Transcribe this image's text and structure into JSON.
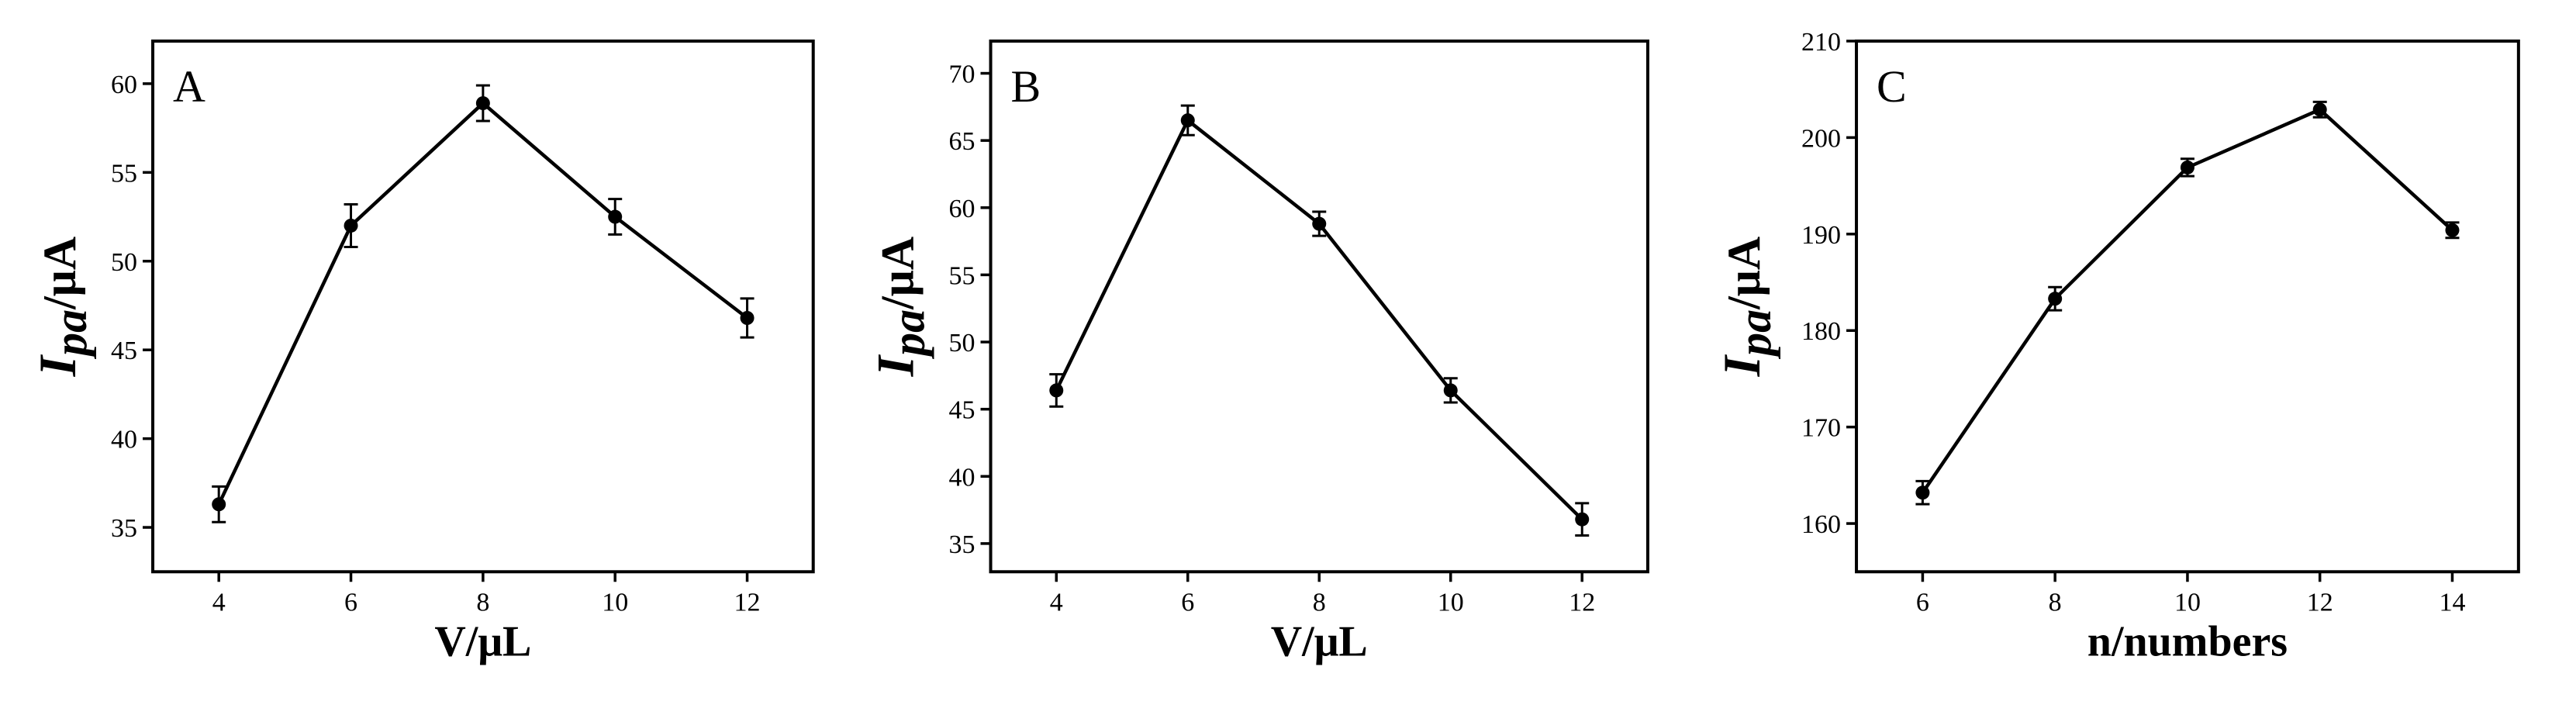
{
  "chart_data": [
    {
      "type": "line",
      "annotation": "A",
      "color": "#000000",
      "x": [
        4,
        6,
        8,
        10,
        12
      ],
      "values": [
        36.3,
        52.0,
        58.9,
        52.5,
        46.8
      ],
      "errors": [
        1.0,
        1.2,
        1.0,
        1.0,
        1.1
      ],
      "xlim": [
        3,
        13
      ],
      "ylim": [
        32.5,
        62.4
      ],
      "xticks": [
        4,
        6,
        8,
        10,
        12
      ],
      "yticks": [
        35,
        40,
        45,
        50,
        55,
        60
      ],
      "xlabel": "V/μL",
      "ylabel": {
        "main": "I",
        "sub": "pa",
        "unit": "/μA"
      }
    },
    {
      "type": "line",
      "annotation": "B",
      "color": "#000000",
      "x": [
        4,
        6,
        8,
        10,
        12
      ],
      "values": [
        46.4,
        66.5,
        58.8,
        46.4,
        36.8
      ],
      "errors": [
        1.2,
        1.1,
        0.9,
        0.9,
        1.2
      ],
      "xlim": [
        3,
        13
      ],
      "ylim": [
        32.9,
        72.4
      ],
      "xticks": [
        4,
        6,
        8,
        10,
        12
      ],
      "yticks": [
        35,
        40,
        45,
        50,
        55,
        60,
        65,
        70
      ],
      "xlabel": "V/μL",
      "ylabel": {
        "main": "I",
        "sub": "pa",
        "unit": "/μA"
      }
    },
    {
      "type": "line",
      "annotation": "C",
      "color": "#000000",
      "x": [
        6,
        8,
        10,
        12,
        14
      ],
      "values": [
        163.2,
        183.3,
        196.9,
        202.9,
        190.4
      ],
      "errors": [
        1.2,
        1.2,
        0.9,
        0.8,
        0.8
      ],
      "xlim": [
        5,
        15
      ],
      "ylim": [
        155,
        210
      ],
      "xticks": [
        6,
        8,
        10,
        12,
        14
      ],
      "yticks": [
        160,
        170,
        180,
        190,
        200,
        210
      ],
      "xlabel": "n/numbers",
      "ylabel": {
        "main": "I",
        "sub": "pa",
        "unit": "/μA"
      }
    }
  ]
}
